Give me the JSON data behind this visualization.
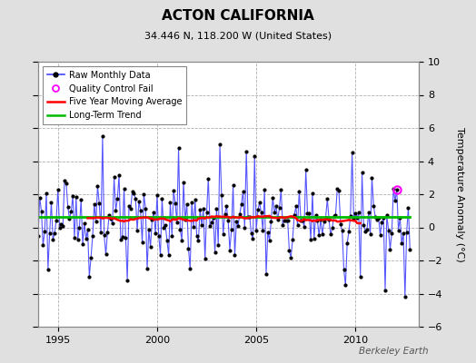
{
  "title": "ACTON CALIFORNIA",
  "subtitle": "34.446 N, 118.200 W (United States)",
  "ylabel": "Temperature Anomaly (°C)",
  "watermark": "Berkeley Earth",
  "xlim": [
    1994.0,
    2013.2
  ],
  "ylim": [
    -6,
    10
  ],
  "yticks": [
    -6,
    -4,
    -2,
    0,
    2,
    4,
    6,
    8,
    10
  ],
  "xticks": [
    1995,
    2000,
    2005,
    2010
  ],
  "background_color": "#e0e0e0",
  "plot_bg_color": "#ffffff",
  "grid_color": "#b0b0b0",
  "long_term_trend_y": 0.65,
  "long_term_trend_slope": 0.0,
  "raw_line_color": "#4444ff",
  "raw_dot_color": "#000000",
  "ma_color": "#ff0000",
  "trend_color": "#00bb00",
  "qc_fail_color": "#ff00ff",
  "qc_fail_x": 2012.1,
  "qc_fail_y": 2.3,
  "title_fontsize": 11,
  "subtitle_fontsize": 8,
  "tick_fontsize": 8,
  "ylabel_fontsize": 8
}
